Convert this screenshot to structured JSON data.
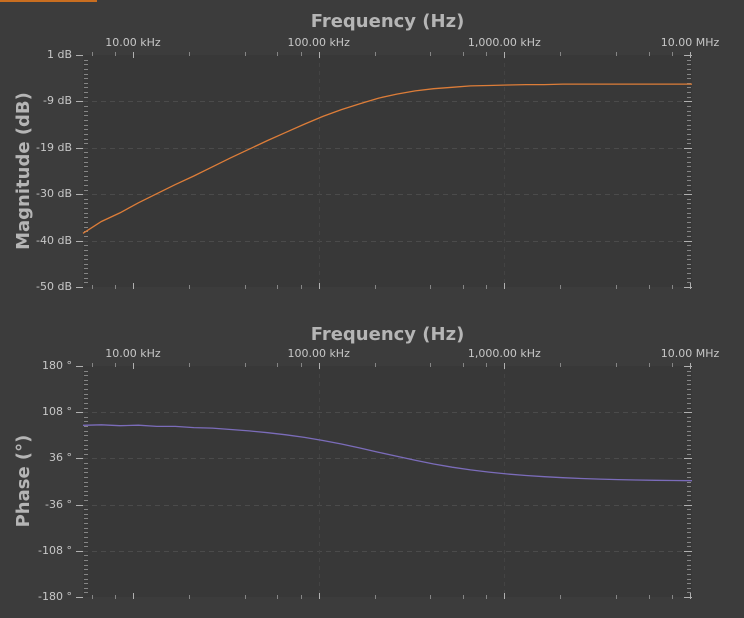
{
  "window": {
    "accent_strip_color": "#c96e20",
    "background": "#3c3c3c"
  },
  "theme": {
    "plot_background": "#383838",
    "grid_color": "#4b4b4b",
    "vgrid_color": "#434343",
    "minor_tick_color": "#858585",
    "major_tick_color": "#b0b0b0",
    "title_color": "#b5b5b5",
    "tick_label_color": "#c7c7c7"
  },
  "chart_data": [
    {
      "type": "line",
      "title": "Frequency (Hz)",
      "ylabel": "Magnitude (dB)",
      "x_scale": "log",
      "x_range_hz": [
        5380,
        10250000
      ],
      "x_ticks": [
        {
          "f": 10000,
          "label": "10.00 kHz"
        },
        {
          "f": 100000,
          "label": "100.00 kHz"
        },
        {
          "f": 1000000,
          "label": "1,000.00 kHz"
        },
        {
          "f": 10000000,
          "label": "10.00 MHz"
        }
      ],
      "y_range": [
        -50,
        1
      ],
      "y_ticks": [
        {
          "v": 1,
          "label": "1 dB"
        },
        {
          "v": -9.2,
          "label": "-9 dB"
        },
        {
          "v": -19.4,
          "label": "-19 dB"
        },
        {
          "v": -29.6,
          "label": "-30 dB"
        },
        {
          "v": -39.8,
          "label": "-40 dB"
        },
        {
          "v": -50,
          "label": "-50 dB"
        }
      ],
      "series": [
        {
          "name": "magnitude",
          "color": "#dd7d38",
          "points": [
            [
              5380,
              -38.2
            ],
            [
              6763,
              -35.6
            ],
            [
              8503,
              -33.7
            ],
            [
              10690,
              -31.5
            ],
            [
              13440,
              -29.5
            ],
            [
              16900,
              -27.5
            ],
            [
              21250,
              -25.6
            ],
            [
              26710,
              -23.6
            ],
            [
              33580,
              -21.6
            ],
            [
              42210,
              -19.7
            ],
            [
              53060,
              -17.8
            ],
            [
              66710,
              -16.0
            ],
            [
              83860,
              -14.2
            ],
            [
              105400,
              -12.5
            ],
            [
              132600,
              -11.0
            ],
            [
              166700,
              -9.7
            ],
            [
              209500,
              -8.5
            ],
            [
              263400,
              -7.6
            ],
            [
              331100,
              -6.9
            ],
            [
              416300,
              -6.4
            ],
            [
              523400,
              -6.1
            ],
            [
              658000,
              -5.8
            ],
            [
              827300,
              -5.7
            ],
            [
              1040000,
              -5.6
            ],
            [
              1308000,
              -5.5
            ],
            [
              1644000,
              -5.5
            ],
            [
              2067000,
              -5.4
            ],
            [
              2599000,
              -5.4
            ],
            [
              3267000,
              -5.4
            ],
            [
              4107000,
              -5.4
            ],
            [
              5164000,
              -5.4
            ],
            [
              6491000,
              -5.4
            ],
            [
              8160000,
              -5.4
            ],
            [
              10250000,
              -5.4
            ]
          ]
        }
      ]
    },
    {
      "type": "line",
      "title": "Frequency (Hz)",
      "ylabel": "Phase (°)",
      "x_scale": "log",
      "x_range_hz": [
        5380,
        10250000
      ],
      "x_ticks": [
        {
          "f": 10000,
          "label": "10.00 kHz"
        },
        {
          "f": 100000,
          "label": "100.00 kHz"
        },
        {
          "f": 1000000,
          "label": "1,000.00 kHz"
        },
        {
          "f": 10000000,
          "label": "10.00 MHz"
        }
      ],
      "y_range": [
        -180,
        180
      ],
      "y_ticks": [
        {
          "v": 180,
          "label": "180 °"
        },
        {
          "v": 108,
          "label": "108 °"
        },
        {
          "v": 36,
          "label": "36 °"
        },
        {
          "v": -36,
          "label": "-36 °"
        },
        {
          "v": -108,
          "label": "-108 °"
        },
        {
          "v": -180,
          "label": "-180 °"
        }
      ],
      "series": [
        {
          "name": "phase",
          "color": "#7b6cba",
          "points": [
            [
              5380,
              87.6
            ],
            [
              6763,
              88.4
            ],
            [
              8503,
              86.9
            ],
            [
              10690,
              87.8
            ],
            [
              13440,
              85.9
            ],
            [
              16900,
              85.9
            ],
            [
              21250,
              84.0
            ],
            [
              26710,
              83.2
            ],
            [
              33580,
              81.1
            ],
            [
              42210,
              78.9
            ],
            [
              53060,
              76.1
            ],
            [
              66710,
              72.8
            ],
            [
              83860,
              68.7
            ],
            [
              105400,
              63.9
            ],
            [
              132600,
              58.4
            ],
            [
              166700,
              52.2
            ],
            [
              209500,
              45.7
            ],
            [
              263400,
              39.2
            ],
            [
              331100,
              33.0
            ],
            [
              416300,
              27.3
            ],
            [
              523400,
              22.3
            ],
            [
              658000,
              18.1
            ],
            [
              827300,
              14.6
            ],
            [
              1040000,
              11.7
            ],
            [
              1308000,
              9.3
            ],
            [
              1644000,
              7.5
            ],
            [
              2067000,
              5.9
            ],
            [
              2599000,
              4.7
            ],
            [
              3267000,
              3.8
            ],
            [
              4107000,
              3.0
            ],
            [
              5164000,
              2.4
            ],
            [
              6491000,
              1.9
            ],
            [
              8160000,
              1.5
            ],
            [
              10250000,
              1.2
            ]
          ]
        }
      ]
    }
  ]
}
